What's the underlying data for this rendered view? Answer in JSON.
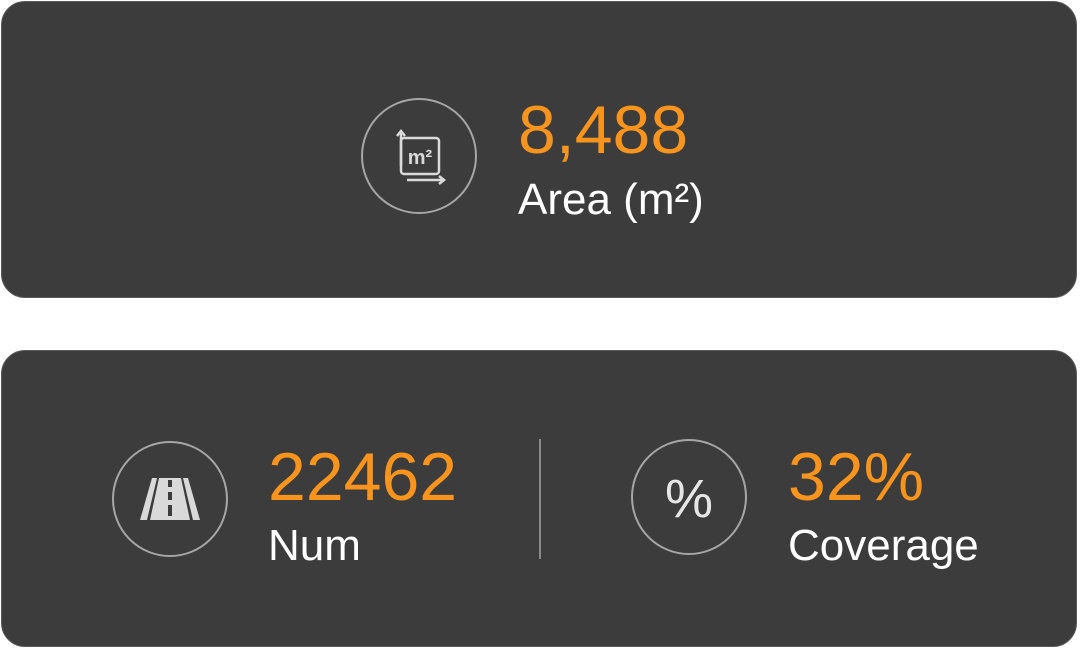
{
  "area_card": {
    "value": "8,488",
    "label": "Area (m²)",
    "icon": "area-m2-icon",
    "icon_text": "m²"
  },
  "stats_card": {
    "num": {
      "value": "22462",
      "label": "Num",
      "icon": "road-icon"
    },
    "coverage": {
      "value": "32%",
      "label": "Coverage",
      "icon": "percent-icon",
      "icon_text": "%"
    }
  },
  "colors": {
    "accent": "#f7941d",
    "card_bg": "#3c3c3c",
    "text": "#ffffff",
    "icon_stroke": "#a6a6a6"
  }
}
